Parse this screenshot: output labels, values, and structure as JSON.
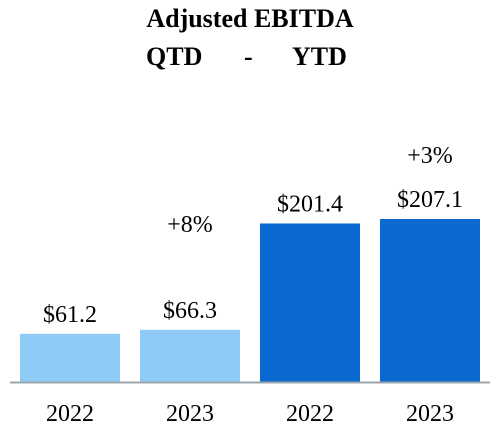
{
  "title": "Adjusted EBITDA",
  "subtitle": {
    "left": "QTD",
    "sep": "-",
    "right": "YTD"
  },
  "chart_data": {
    "type": "bar",
    "categories": [
      "2022",
      "2023",
      "2022",
      "2023"
    ],
    "values": [
      61.2,
      66.3,
      201.4,
      207.1
    ],
    "value_labels": [
      "$61.2",
      "$66.3",
      "$201.4",
      "$207.1"
    ],
    "groups": [
      "QTD",
      "QTD",
      "YTD",
      "YTD"
    ],
    "group_colors": {
      "QTD": "#8ecbf7",
      "YTD": "#0a6ad0"
    },
    "growth_labels": [
      {
        "group": "QTD",
        "text": "+8%"
      },
      {
        "group": "YTD",
        "text": "+3%"
      }
    ],
    "ylim": [
      0,
      207.1
    ],
    "axis_color": "#9aa5ad",
    "grid": false,
    "legend": "none"
  }
}
